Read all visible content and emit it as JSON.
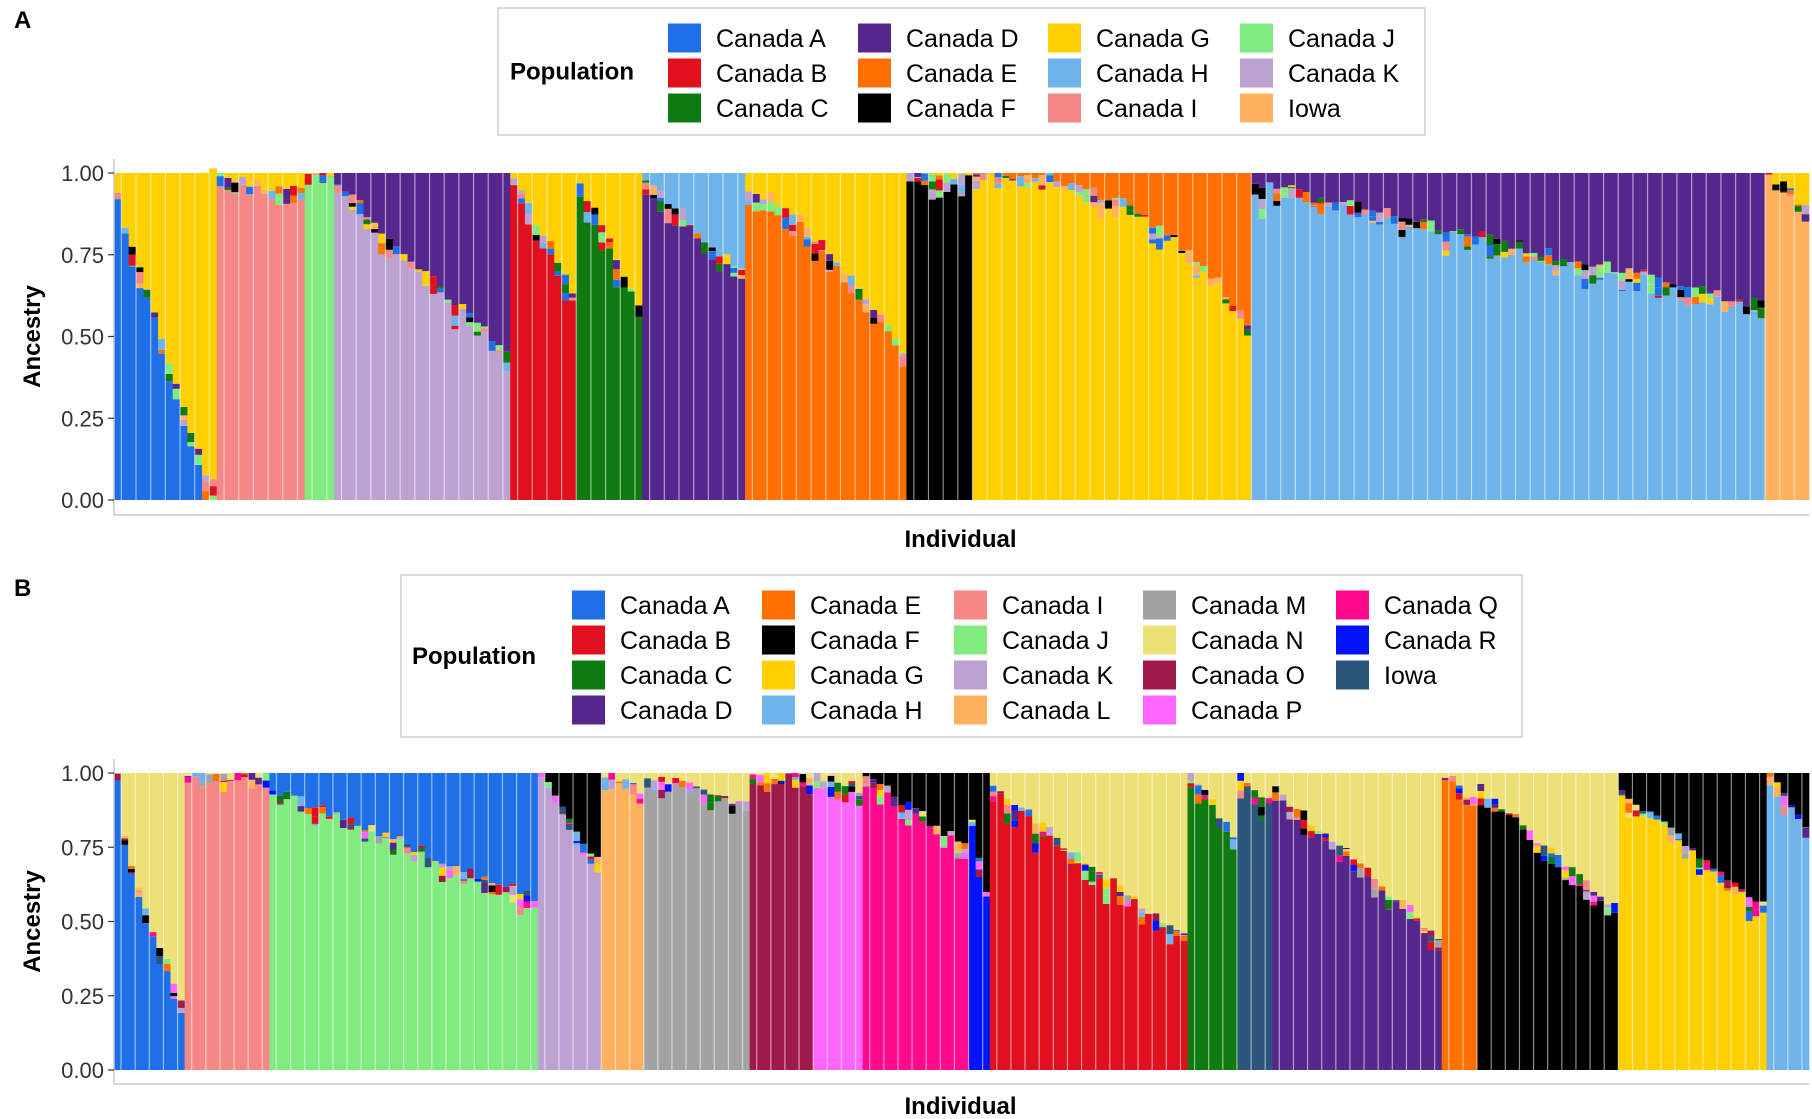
{
  "chart_data": [
    {
      "panel": "A",
      "type": "bar",
      "stacked": true,
      "xlabel": "Individual",
      "ylabel": "Ancestry",
      "ylim": [
        0,
        1
      ],
      "yticks": [
        "0.00",
        "0.25",
        "0.50",
        "0.75",
        "1.00"
      ],
      "legend": {
        "title": "Population",
        "placement": "top",
        "columns": 4,
        "entries": [
          {
            "label": "Canada A",
            "color": "#1f6fe8"
          },
          {
            "label": "Canada B",
            "color": "#e0101e"
          },
          {
            "label": "Canada C",
            "color": "#0f7a0f"
          },
          {
            "label": "Canada D",
            "color": "#55278c"
          },
          {
            "label": "Canada E",
            "color": "#ff7000"
          },
          {
            "label": "Canada F",
            "color": "#000000"
          },
          {
            "label": "Canada G",
            "color": "#ffd000"
          },
          {
            "label": "Canada H",
            "color": "#6eb4ea"
          },
          {
            "label": "Canada I",
            "color": "#f58787"
          },
          {
            "label": "Canada J",
            "color": "#80ec80"
          },
          {
            "label": "Canada K",
            "color": "#bba2d0"
          },
          {
            "label": "Iowa",
            "color": "#ffb15c"
          }
        ]
      },
      "groups": [
        {
          "dominant": "Canada A",
          "count": 14,
          "secondary": "Canada G",
          "from": 0.08,
          "to": 1.0,
          "sshape": 1.0
        },
        {
          "dominant": "Canada I",
          "count": 12,
          "secondary": "Canada G",
          "from": 0.0,
          "to": 0.06,
          "sshape": 1.0
        },
        {
          "dominant": "Canada J",
          "count": 4,
          "secondary": "Canada G",
          "from": 0.0,
          "to": 0.0,
          "sshape": 1.0
        },
        {
          "dominant": "Canada K",
          "count": 24,
          "secondary": "Canada D",
          "from": 0.03,
          "to": 0.55,
          "sshape": 1.0
        },
        {
          "dominant": "Canada B",
          "count": 9,
          "secondary": "Canada G",
          "from": 0.02,
          "to": 0.35,
          "sshape": 1.0
        },
        {
          "dominant": "Canada C",
          "count": 9,
          "secondary": "Canada G",
          "from": 0.02,
          "to": 0.4,
          "sshape": 1.0
        },
        {
          "dominant": "Canada D",
          "count": 14,
          "secondary": "Canada H",
          "from": 0.02,
          "to": 0.3,
          "sshape": 1.0
        },
        {
          "dominant": "Canada E",
          "count": 22,
          "secondary": "Canada G",
          "from": 0.05,
          "to": 0.55,
          "sshape": 1.5
        },
        {
          "dominant": "Canada F",
          "count": 9,
          "secondary": "Canada G",
          "from": 0.0,
          "to": 0.02,
          "sshape": 1.0
        },
        {
          "dominant": "Canada G",
          "count": 38,
          "secondary": "Canada E",
          "from": 0.0,
          "to": 0.45,
          "sshape": 2.5
        },
        {
          "dominant": "Canada H",
          "count": 70,
          "secondary": "Canada D",
          "from": 0.03,
          "to": 0.4,
          "sshape": 1.0
        },
        {
          "dominant": "Iowa",
          "count": 6,
          "secondary": "Canada G",
          "from": 0.0,
          "to": 0.1,
          "sshape": 1.0
        }
      ]
    },
    {
      "panel": "B",
      "type": "bar",
      "stacked": true,
      "xlabel": "Individual",
      "ylabel": "Ancestry",
      "ylim": [
        0,
        1
      ],
      "yticks": [
        "0.00",
        "0.25",
        "0.50",
        "0.75",
        "1.00"
      ],
      "legend": {
        "title": "Population",
        "placement": "top",
        "columns": 5,
        "entries": [
          {
            "label": "Canada A",
            "color": "#1f6fe8"
          },
          {
            "label": "Canada B",
            "color": "#e0101e"
          },
          {
            "label": "Canada C",
            "color": "#0f7a0f"
          },
          {
            "label": "Canada D",
            "color": "#55278c"
          },
          {
            "label": "Canada E",
            "color": "#ff7000"
          },
          {
            "label": "Canada F",
            "color": "#000000"
          },
          {
            "label": "Canada G",
            "color": "#ffd000"
          },
          {
            "label": "Canada H",
            "color": "#6eb4ea"
          },
          {
            "label": "Canada I",
            "color": "#f58787"
          },
          {
            "label": "Canada J",
            "color": "#80ec80"
          },
          {
            "label": "Canada K",
            "color": "#bba2d0"
          },
          {
            "label": "Canada L",
            "color": "#ffb15c"
          },
          {
            "label": "Canada M",
            "color": "#a3a3a3"
          },
          {
            "label": "Canada N",
            "color": "#ede076"
          },
          {
            "label": "Canada O",
            "color": "#9e1a4a"
          },
          {
            "label": "Canada P",
            "color": "#ff66ff"
          },
          {
            "label": "Canada Q",
            "color": "#ff0a8c"
          },
          {
            "label": "Canada R",
            "color": "#0014ff"
          },
          {
            "label": "Iowa",
            "color": "#2b557a"
          }
        ]
      },
      "groups": [
        {
          "dominant": "Canada A",
          "count": 10,
          "secondary": "Canada N",
          "from": 0.0,
          "to": 0.75,
          "sshape": 0.6
        },
        {
          "dominant": "Canada I",
          "count": 12,
          "secondary": "Canada N",
          "from": 0.0,
          "to": 0.0,
          "sshape": 1.0
        },
        {
          "dominant": "Canada J",
          "count": 38,
          "secondary": "Canada A",
          "from": 0.05,
          "to": 0.42,
          "sshape": 1.0
        },
        {
          "dominant": "Canada K",
          "count": 9,
          "secondary": "Canada F",
          "from": 0.0,
          "to": 0.3,
          "sshape": 1.0
        },
        {
          "dominant": "Canada L",
          "count": 6,
          "secondary": "Canada N",
          "from": 0.0,
          "to": 0.05,
          "sshape": 1.0
        },
        {
          "dominant": "Canada M",
          "count": 15,
          "secondary": "Canada N",
          "from": 0.0,
          "to": 0.1,
          "sshape": 1.0
        },
        {
          "dominant": "Canada O",
          "count": 9,
          "secondary": "Canada N",
          "from": 0.0,
          "to": 0.0,
          "sshape": 1.0
        },
        {
          "dominant": "Canada P",
          "count": 7,
          "secondary": "Canada N",
          "from": 0.0,
          "to": 0.05,
          "sshape": 1.0
        },
        {
          "dominant": "Canada Q",
          "count": 15,
          "secondary": "Canada F",
          "from": 0.0,
          "to": 0.25,
          "sshape": 1.0
        },
        {
          "dominant": "Canada R",
          "count": 3,
          "secondary": "Canada F",
          "from": 0.15,
          "to": 0.4,
          "sshape": 1.0
        },
        {
          "dominant": "Canada B",
          "count": 28,
          "secondary": "Canada N",
          "from": 0.05,
          "to": 0.55,
          "sshape": 1.0
        },
        {
          "dominant": "Canada C",
          "count": 7,
          "secondary": "Canada N",
          "from": 0.0,
          "to": 0.2,
          "sshape": 1.0
        },
        {
          "dominant": "Iowa",
          "count": 5,
          "secondary": "Canada N",
          "from": 0.0,
          "to": 0.1,
          "sshape": 1.0
        },
        {
          "dominant": "Canada D",
          "count": 24,
          "secondary": "Canada N",
          "from": 0.05,
          "to": 0.55,
          "sshape": 1.0
        },
        {
          "dominant": "Canada E",
          "count": 5,
          "secondary": "Canada N",
          "from": 0.0,
          "to": 0.1,
          "sshape": 1.0
        },
        {
          "dominant": "Canada F",
          "count": 20,
          "secondary": "Canada N",
          "from": 0.05,
          "to": 0.45,
          "sshape": 1.0
        },
        {
          "dominant": "Canada G",
          "count": 21,
          "secondary": "Canada F",
          "from": 0.05,
          "to": 0.45,
          "sshape": 1.0
        },
        {
          "dominant": "Canada H",
          "count": 6,
          "secondary": "Canada F",
          "from": 0.0,
          "to": 0.2,
          "sshape": 1.0
        }
      ]
    }
  ]
}
